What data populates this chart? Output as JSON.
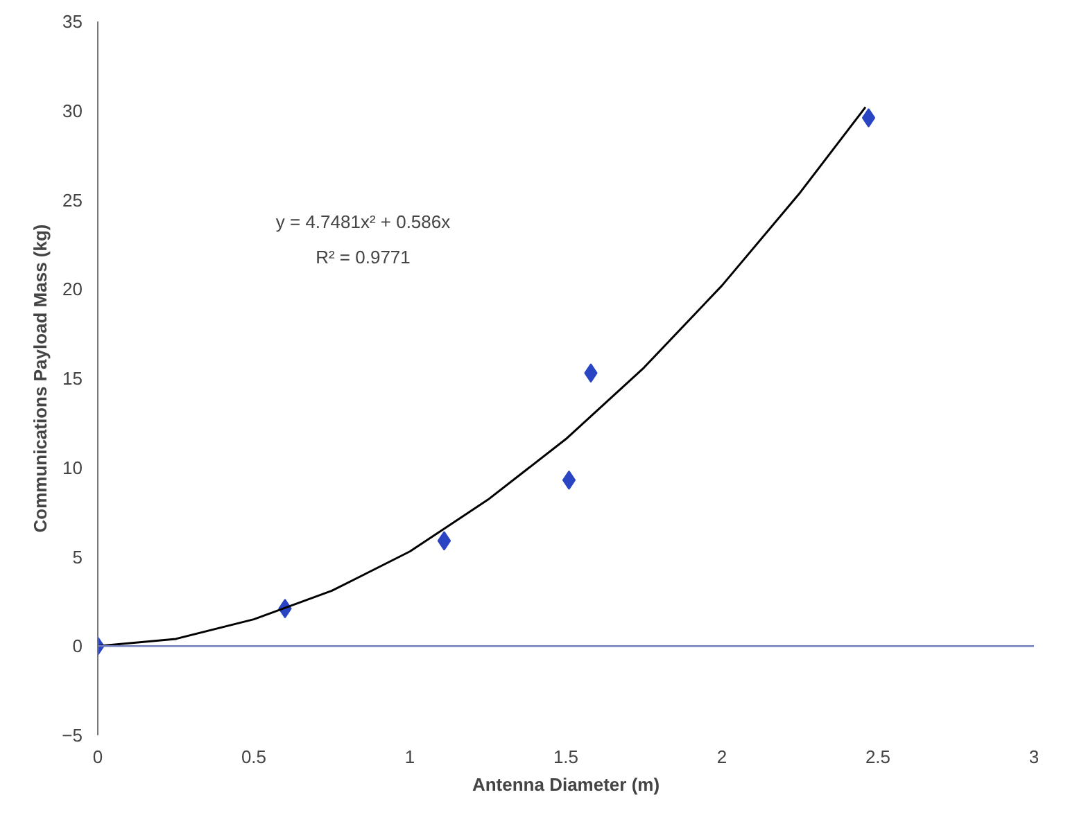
{
  "chart_data": {
    "type": "scatter",
    "xlabel": "Antenna Diameter (m)",
    "ylabel": "Communications Payload Mass (kg)",
    "xlim": [
      0,
      3
    ],
    "ylim": [
      -5,
      35
    ],
    "xticks": [
      0,
      0.5,
      1,
      1.5,
      2,
      2.5,
      3
    ],
    "yticks": [
      -5,
      0,
      5,
      10,
      15,
      20,
      25,
      30,
      35
    ],
    "ref_lines": [
      {
        "axis": "y",
        "value": 0,
        "color": "#6f7fbf"
      }
    ],
    "grid": false,
    "marker": "diamond",
    "annotations": [
      "y = 4.7481x² + 0.586x",
      "R² = 0.9771"
    ],
    "series": [
      {
        "color": "#2a45c4",
        "x": [
          0,
          0.6,
          1.11,
          1.51,
          1.58,
          2.47
        ],
        "values": [
          0,
          2.1,
          5.9,
          9.3,
          15.3,
          29.6
        ]
      },
      {
        "type": "line",
        "color": "#000000",
        "line_style": "solid",
        "marker": "none",
        "x": [
          0,
          0.25,
          0.5,
          0.75,
          1,
          1.25,
          1.5,
          1.75,
          2,
          2.25,
          2.46
        ],
        "values": [
          0,
          0.4,
          1.5,
          3.1,
          5.3,
          8.2,
          11.6,
          15.6,
          20.2,
          25.4,
          30.2
        ]
      }
    ]
  }
}
